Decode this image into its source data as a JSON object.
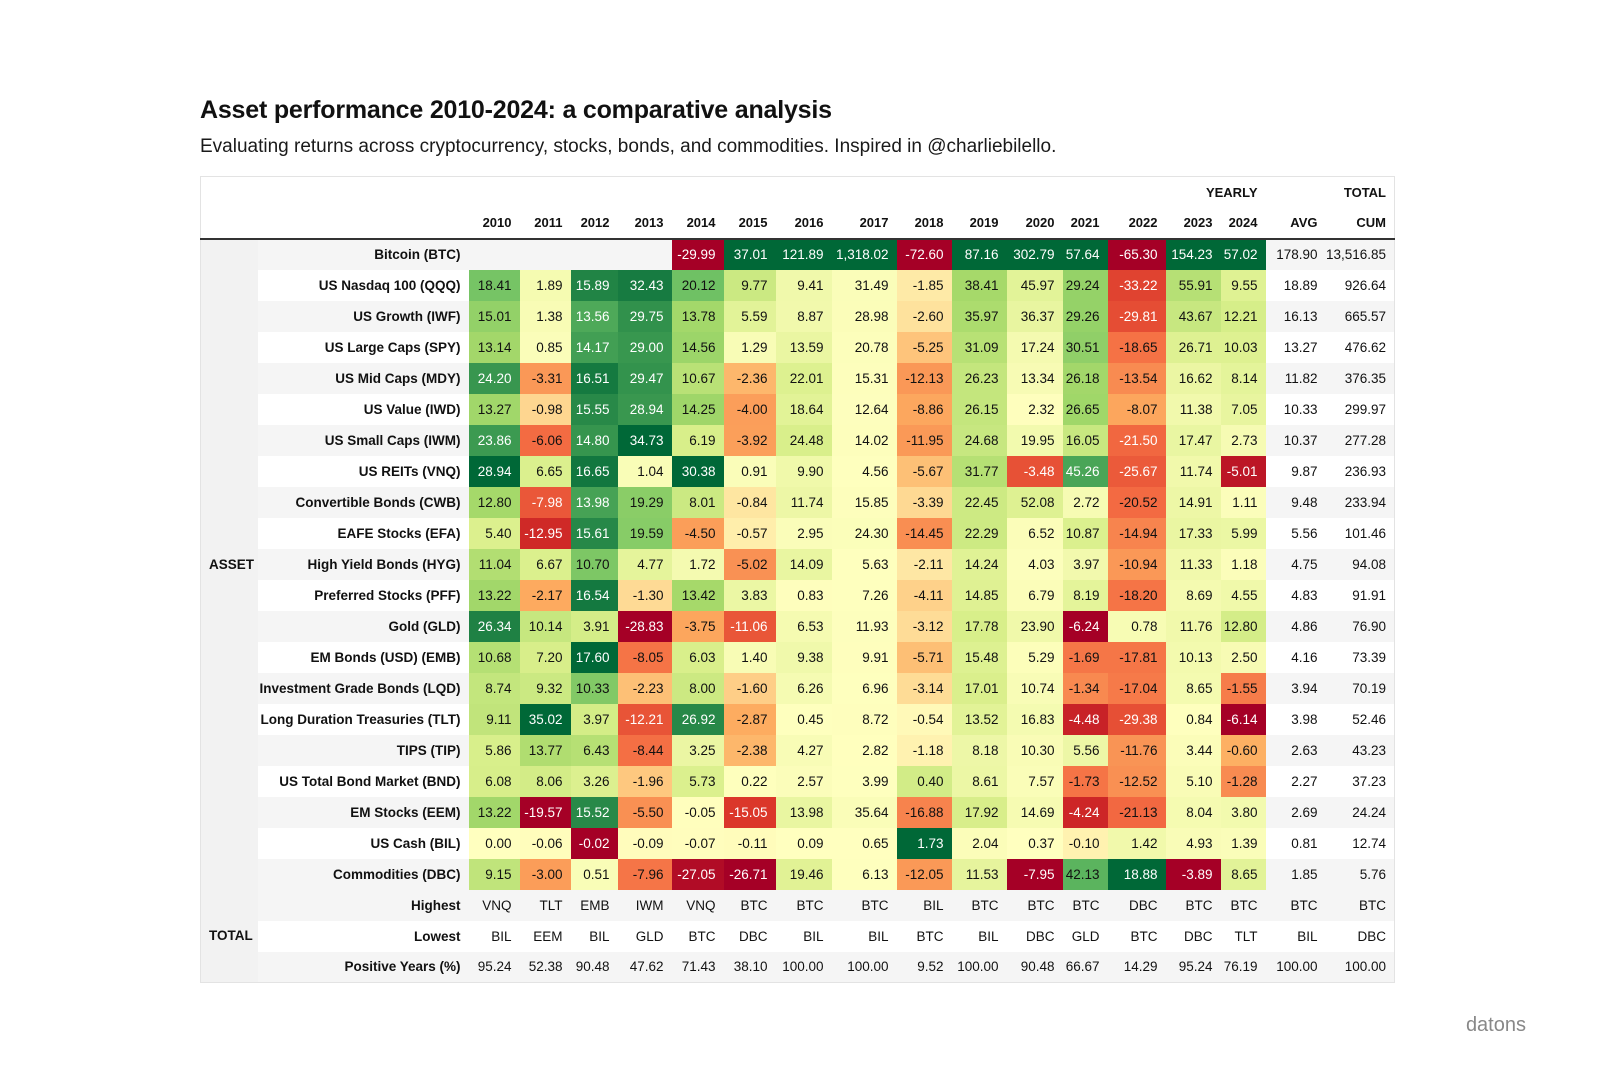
{
  "title": "Asset performance 2010-2024: a comparative analysis",
  "subtitle": "Evaluating returns across cryptocurrency, stocks, bonds, and commodities. Inspired in @charliebilello.",
  "brand": "datons",
  "chart_data": {
    "type": "table",
    "group_label_yearly": "YEARLY",
    "group_label_total": "TOTAL",
    "columns": [
      "2010",
      "2011",
      "2012",
      "2013",
      "2014",
      "2015",
      "2016",
      "2017",
      "2018",
      "2019",
      "2020",
      "2021",
      "2022",
      "2023",
      "2024"
    ],
    "avg_label": "AVG",
    "cum_label": "CUM",
    "asset_group_label": "ASSET",
    "total_group_label": "TOTAL",
    "assets": [
      {
        "name": "Bitcoin (BTC)",
        "values": [
          null,
          null,
          null,
          null,
          "-29.99",
          "37.01",
          "121.89",
          "1,318.02",
          "-72.60",
          "87.16",
          "302.79",
          "57.64",
          "-65.30",
          "154.23",
          "57.02"
        ],
        "avg": "178.90",
        "cum": "13,516.85"
      },
      {
        "name": "US Nasdaq 100 (QQQ)",
        "values": [
          "18.41",
          "1.89",
          "15.89",
          "32.43",
          "20.12",
          "9.77",
          "9.41",
          "31.49",
          "-1.85",
          "38.41",
          "45.97",
          "29.24",
          "-33.22",
          "55.91",
          "9.55"
        ],
        "avg": "18.89",
        "cum": "926.64"
      },
      {
        "name": "US Growth (IWF)",
        "values": [
          "15.01",
          "1.38",
          "13.56",
          "29.75",
          "13.78",
          "5.59",
          "8.87",
          "28.98",
          "-2.60",
          "35.97",
          "36.37",
          "29.26",
          "-29.81",
          "43.67",
          "12.21"
        ],
        "avg": "16.13",
        "cum": "665.57"
      },
      {
        "name": "US Large Caps (SPY)",
        "values": [
          "13.14",
          "0.85",
          "14.17",
          "29.00",
          "14.56",
          "1.29",
          "13.59",
          "20.78",
          "-5.25",
          "31.09",
          "17.24",
          "30.51",
          "-18.65",
          "26.71",
          "10.03"
        ],
        "avg": "13.27",
        "cum": "476.62"
      },
      {
        "name": "US Mid Caps (MDY)",
        "values": [
          "24.20",
          "-3.31",
          "16.51",
          "29.47",
          "10.67",
          "-2.36",
          "22.01",
          "15.31",
          "-12.13",
          "26.23",
          "13.34",
          "26.18",
          "-13.54",
          "16.62",
          "8.14"
        ],
        "avg": "11.82",
        "cum": "376.35"
      },
      {
        "name": "US Value (IWD)",
        "values": [
          "13.27",
          "-0.98",
          "15.55",
          "28.94",
          "14.25",
          "-4.00",
          "18.64",
          "12.64",
          "-8.86",
          "26.15",
          "2.32",
          "26.65",
          "-8.07",
          "11.38",
          "7.05"
        ],
        "avg": "10.33",
        "cum": "299.97"
      },
      {
        "name": "US Small Caps (IWM)",
        "values": [
          "23.86",
          "-6.06",
          "14.80",
          "34.73",
          "6.19",
          "-3.92",
          "24.48",
          "14.02",
          "-11.95",
          "24.68",
          "19.95",
          "16.05",
          "-21.50",
          "17.47",
          "2.73"
        ],
        "avg": "10.37",
        "cum": "277.28"
      },
      {
        "name": "US REITs (VNQ)",
        "values": [
          "28.94",
          "6.65",
          "16.65",
          "1.04",
          "30.38",
          "0.91",
          "9.90",
          "4.56",
          "-5.67",
          "31.77",
          "-3.48",
          "45.26",
          "-25.67",
          "11.74",
          "-5.01"
        ],
        "avg": "9.87",
        "cum": "236.93"
      },
      {
        "name": "Convertible Bonds (CWB)",
        "values": [
          "12.80",
          "-7.98",
          "13.98",
          "19.29",
          "8.01",
          "-0.84",
          "11.74",
          "15.85",
          "-3.39",
          "22.45",
          "52.08",
          "2.72",
          "-20.52",
          "14.91",
          "1.11"
        ],
        "avg": "9.48",
        "cum": "233.94"
      },
      {
        "name": "EAFE Stocks (EFA)",
        "values": [
          "5.40",
          "-12.95",
          "15.61",
          "19.59",
          "-4.50",
          "-0.57",
          "2.95",
          "24.30",
          "-14.45",
          "22.29",
          "6.52",
          "10.87",
          "-14.94",
          "17.33",
          "5.99"
        ],
        "avg": "5.56",
        "cum": "101.46"
      },
      {
        "name": "High Yield Bonds (HYG)",
        "values": [
          "11.04",
          "6.67",
          "10.70",
          "4.77",
          "1.72",
          "-5.02",
          "14.09",
          "5.63",
          "-2.11",
          "14.24",
          "4.03",
          "3.97",
          "-10.94",
          "11.33",
          "1.18"
        ],
        "avg": "4.75",
        "cum": "94.08"
      },
      {
        "name": "Preferred Stocks (PFF)",
        "values": [
          "13.22",
          "-2.17",
          "16.54",
          "-1.30",
          "13.42",
          "3.83",
          "0.83",
          "7.26",
          "-4.11",
          "14.85",
          "6.79",
          "8.19",
          "-18.20",
          "8.69",
          "4.55"
        ],
        "avg": "4.83",
        "cum": "91.91"
      },
      {
        "name": "Gold (GLD)",
        "values": [
          "26.34",
          "10.14",
          "3.91",
          "-28.83",
          "-3.75",
          "-11.06",
          "6.53",
          "11.93",
          "-3.12",
          "17.78",
          "23.90",
          "-6.24",
          "0.78",
          "11.76",
          "12.80"
        ],
        "avg": "4.86",
        "cum": "76.90"
      },
      {
        "name": "EM Bonds (USD) (EMB)",
        "values": [
          "10.68",
          "7.20",
          "17.60",
          "-8.05",
          "6.03",
          "1.40",
          "9.38",
          "9.91",
          "-5.71",
          "15.48",
          "5.29",
          "-1.69",
          "-17.81",
          "10.13",
          "2.50"
        ],
        "avg": "4.16",
        "cum": "73.39"
      },
      {
        "name": "Investment Grade Bonds (LQD)",
        "values": [
          "8.74",
          "9.32",
          "10.33",
          "-2.23",
          "8.00",
          "-1.60",
          "6.26",
          "6.96",
          "-3.14",
          "17.01",
          "10.74",
          "-1.34",
          "-17.04",
          "8.65",
          "-1.55"
        ],
        "avg": "3.94",
        "cum": "70.19"
      },
      {
        "name": "Long Duration Treasuries (TLT)",
        "values": [
          "9.11",
          "35.02",
          "3.97",
          "-12.21",
          "26.92",
          "-2.87",
          "0.45",
          "8.72",
          "-0.54",
          "13.52",
          "16.83",
          "-4.48",
          "-29.38",
          "0.84",
          "-6.14"
        ],
        "avg": "3.98",
        "cum": "52.46"
      },
      {
        "name": "TIPS (TIP)",
        "values": [
          "5.86",
          "13.77",
          "6.43",
          "-8.44",
          "3.25",
          "-2.38",
          "4.27",
          "2.82",
          "-1.18",
          "8.18",
          "10.30",
          "5.56",
          "-11.76",
          "3.44",
          "-0.60"
        ],
        "avg": "2.63",
        "cum": "43.23"
      },
      {
        "name": "US Total Bond Market (BND)",
        "values": [
          "6.08",
          "8.06",
          "3.26",
          "-1.96",
          "5.73",
          "0.22",
          "2.57",
          "3.99",
          "0.40",
          "8.61",
          "7.57",
          "-1.73",
          "-12.52",
          "5.10",
          "-1.28"
        ],
        "avg": "2.27",
        "cum": "37.23"
      },
      {
        "name": "EM Stocks (EEM)",
        "values": [
          "13.22",
          "-19.57",
          "15.52",
          "-5.50",
          "-0.05",
          "-15.05",
          "13.98",
          "35.64",
          "-16.88",
          "17.92",
          "14.69",
          "-4.24",
          "-21.13",
          "8.04",
          "3.80"
        ],
        "avg": "2.69",
        "cum": "24.24"
      },
      {
        "name": "US Cash (BIL)",
        "values": [
          "0.00",
          "-0.06",
          "-0.02",
          "-0.09",
          "-0.07",
          "-0.11",
          "0.09",
          "0.65",
          "1.73",
          "2.04",
          "0.37",
          "-0.10",
          "1.42",
          "4.93",
          "1.39"
        ],
        "avg": "0.81",
        "cum": "12.74"
      },
      {
        "name": "Commodities (DBC)",
        "values": [
          "9.15",
          "-3.00",
          "0.51",
          "-7.96",
          "-27.05",
          "-26.71",
          "19.46",
          "6.13",
          "-12.05",
          "11.53",
          "-7.95",
          "42.13",
          "18.88",
          "-3.89",
          "8.65"
        ],
        "avg": "1.85",
        "cum": "5.76"
      }
    ],
    "totals": [
      {
        "name": "Highest",
        "values": [
          "VNQ",
          "TLT",
          "EMB",
          "IWM",
          "VNQ",
          "BTC",
          "BTC",
          "BTC",
          "BIL",
          "BTC",
          "BTC",
          "BTC",
          "DBC",
          "BTC",
          "BTC"
        ],
        "avg": "BTC",
        "cum": "BTC"
      },
      {
        "name": "Lowest",
        "values": [
          "BIL",
          "EEM",
          "BIL",
          "GLD",
          "BTC",
          "DBC",
          "BIL",
          "BIL",
          "BTC",
          "BIL",
          "DBC",
          "GLD",
          "BTC",
          "DBC",
          "TLT"
        ],
        "avg": "BIL",
        "cum": "DBC"
      },
      {
        "name": "Positive Years (%)",
        "values": [
          "95.24",
          "52.38",
          "90.48",
          "47.62",
          "71.43",
          "38.10",
          "100.00",
          "100.00",
          "9.52",
          "100.00",
          "90.48",
          "66.67",
          "14.29",
          "95.24",
          "76.19"
        ],
        "avg": "100.00",
        "cum": "100.00"
      }
    ],
    "color_scale": {
      "low": "#a50026",
      "mid": "#ffffbf",
      "high": "#006837"
    }
  }
}
